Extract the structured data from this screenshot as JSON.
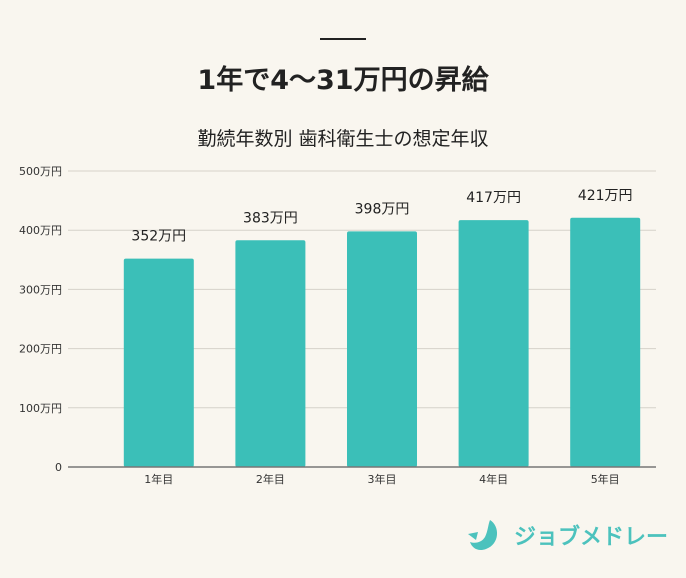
{
  "header": {
    "title": "1年で4～31万円の昇給",
    "subtitle": "勤続年数別 歯科衛生士の想定年収"
  },
  "chart_data": {
    "type": "bar",
    "categories": [
      "1年目",
      "2年目",
      "3年目",
      "4年目",
      "5年目"
    ],
    "values": [
      352,
      383,
      398,
      417,
      421
    ],
    "data_labels": [
      "352万円",
      "383万円",
      "398万円",
      "417万円",
      "421万円"
    ],
    "ylim": [
      0,
      500
    ],
    "yticks": [
      0,
      100,
      200,
      300,
      400,
      500
    ],
    "ytick_labels": [
      "0",
      "100万円",
      "200万円",
      "300万円",
      "400万円",
      "500万円"
    ],
    "grid": true,
    "bar_color": "#3bbfb8"
  },
  "logo": {
    "text": "ジョブメドレー",
    "color": "#4cc2bd"
  }
}
